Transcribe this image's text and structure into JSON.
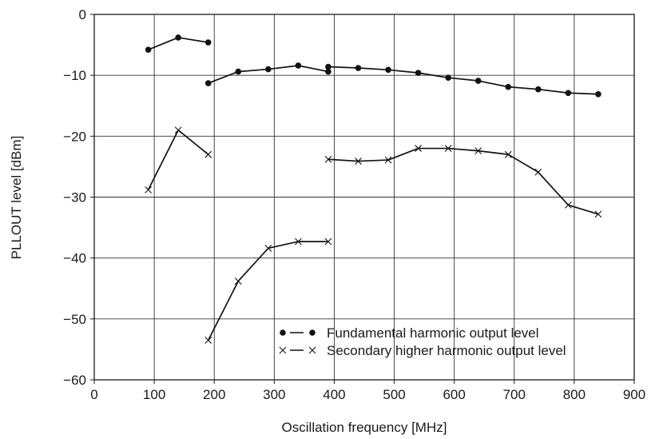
{
  "chart_data": {
    "type": "line",
    "title": "",
    "xlabel": "Oscillation frequency [MHz]",
    "ylabel": "PLLOUT level [dBm]",
    "xlim": [
      0,
      900
    ],
    "ylim": [
      -60,
      0
    ],
    "xticks": [
      0,
      100,
      200,
      300,
      400,
      500,
      600,
      700,
      800,
      900
    ],
    "yticks": [
      0,
      -10,
      -20,
      -30,
      -40,
      -50,
      -60
    ],
    "xtick_labels": [
      "0",
      "100",
      "200",
      "300",
      "400",
      "500",
      "600",
      "700",
      "800",
      "900"
    ],
    "ytick_labels": [
      "0",
      "−10",
      "−20",
      "−30",
      "−40",
      "−50",
      "−60"
    ],
    "grid": true,
    "legend_position": "bottom-right",
    "series": [
      {
        "name": "Fundamental harmonic output level",
        "legend_symbol": "● — ●",
        "marker": "dot",
        "color": "#111111",
        "segments": [
          [
            [
              90,
              -5.8
            ],
            [
              140,
              -3.8
            ],
            [
              190,
              -4.6
            ]
          ],
          [
            [
              190,
              -11.3
            ],
            [
              240,
              -9.4
            ],
            [
              290,
              -9.0
            ],
            [
              340,
              -8.4
            ],
            [
              390,
              -9.4
            ]
          ],
          [
            [
              390,
              -8.6
            ],
            [
              440,
              -8.8
            ],
            [
              490,
              -9.1
            ],
            [
              540,
              -9.6
            ],
            [
              590,
              -10.4
            ],
            [
              640,
              -10.9
            ],
            [
              690,
              -11.9
            ],
            [
              740,
              -12.3
            ],
            [
              790,
              -12.9
            ],
            [
              840,
              -13.1
            ]
          ]
        ]
      },
      {
        "name": "Secondary higher harmonic output level",
        "legend_symbol": "× — ×",
        "marker": "x",
        "color": "#111111",
        "segments": [
          [
            [
              90,
              -28.8
            ],
            [
              140,
              -19.0
            ],
            [
              190,
              -23.0
            ]
          ],
          [
            [
              190,
              -53.5
            ],
            [
              240,
              -43.8
            ],
            [
              290,
              -38.4
            ],
            [
              340,
              -37.3
            ],
            [
              390,
              -37.3
            ]
          ],
          [
            [
              390,
              -23.8
            ],
            [
              440,
              -24.1
            ],
            [
              490,
              -23.9
            ],
            [
              540,
              -22.0
            ],
            [
              590,
              -22.0
            ],
            [
              640,
              -22.4
            ],
            [
              690,
              -23.0
            ],
            [
              740,
              -25.9
            ],
            [
              790,
              -31.3
            ],
            [
              840,
              -32.8
            ]
          ]
        ]
      }
    ]
  }
}
